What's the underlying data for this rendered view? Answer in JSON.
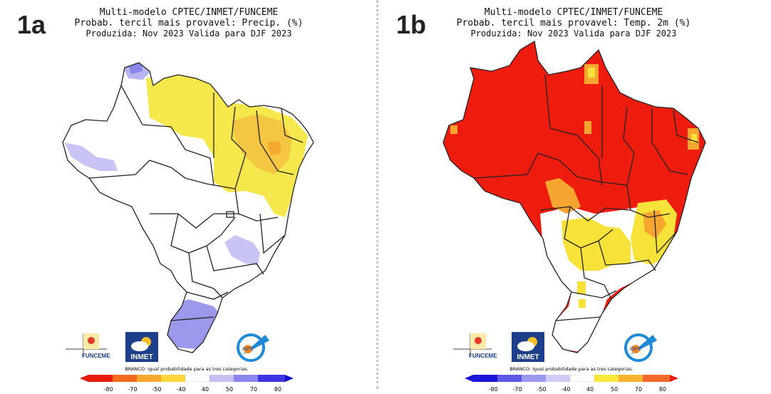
{
  "panel_a": {
    "label": "1a",
    "title_line1": "Multi-modelo CPTEC/INMET/FUNCEME",
    "title_line2": "Probab. tercil mais provavel: Precip. (%)",
    "title_line3": "Produzida: Nov 2023   Valida para DJF 2023",
    "dominant_signal": "yellow/orange over north and northeast, light blue over Roraima, southwest Amazonas, central Goiás and Rio Grande do Sul",
    "colors": {
      "below": "#f4e84c",
      "strong_below": "#f4b32e",
      "above": "#b8b4f0",
      "strong_above": "#8a86e8"
    }
  },
  "panel_b": {
    "label": "1b",
    "title_line1": "Multi-modelo CPTEC/INMET/FUNCEME",
    "title_line2": "Probab. tercil mais provavel: Temp. 2m (%)",
    "title_line3": "Produzida: Nov 2023   Valida para DJF 2023",
    "colors": {
      "hot": "#ee1c0e",
      "warm": "#f7a531",
      "mild": "#f7e23a"
    }
  },
  "logos": {
    "funceme": "FUNCEME",
    "inmet": "INMET",
    "inpe": "INPE"
  },
  "colorbar": {
    "note": "BRANCO: Igual probabilidade para as tres categorias.",
    "ticks_a": [
      "-80",
      "-70",
      "-50",
      "-40",
      "40",
      "50",
      "70",
      "80"
    ],
    "ticks_b": [
      "-80",
      "-70",
      "-50",
      "-40",
      "40",
      "50",
      "70",
      "80"
    ],
    "colors_a": [
      "#e81c0c",
      "#f46a1c",
      "#f8a82c",
      "#fcd63a",
      "#ffffff",
      "#c4c0f4",
      "#8a86ec",
      "#3c34e0",
      "#1010c8"
    ],
    "colors_b": [
      "#1c14d8",
      "#5c58e8",
      "#9c98f0",
      "#d0ccf8",
      "#ffffff",
      "#fce83a",
      "#f8b42c",
      "#f4682a",
      "#e81c0c"
    ]
  }
}
